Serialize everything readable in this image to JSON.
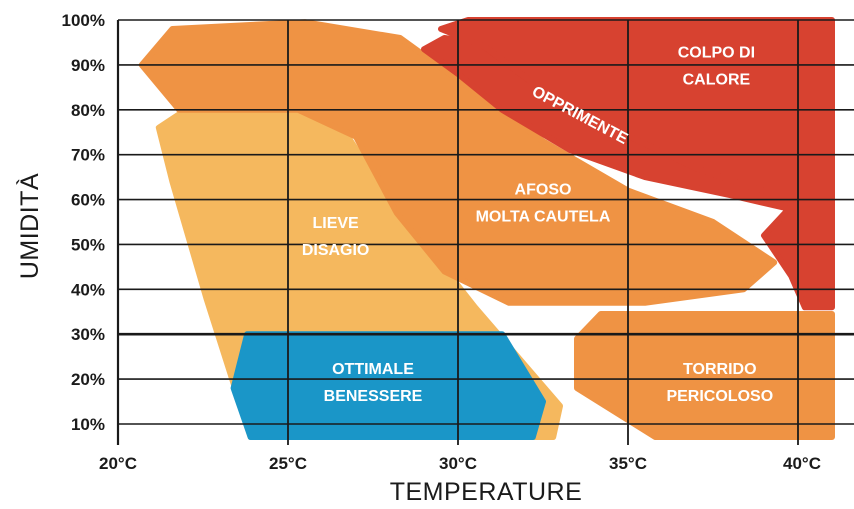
{
  "chart_data": {
    "type": "area",
    "title": "",
    "xlabel": "TEMPERATURE",
    "ylabel": "UMIDITÀ",
    "x_ticks": [
      "20°C",
      "25°C",
      "30°C",
      "35°C",
      "40°C"
    ],
    "y_ticks": [
      "10%",
      "20%",
      "30%",
      "40%",
      "50%",
      "60%",
      "70%",
      "80%",
      "90%",
      "100%"
    ],
    "xlim": [
      20,
      41
    ],
    "ylim": [
      6,
      100
    ],
    "grid": true,
    "zones": [
      {
        "id": "lieve-disagio",
        "lines": [
          "LIEVE",
          "DISAGIO"
        ],
        "color": "#f5b85e",
        "label_at": [
          26.4,
          52.0
        ],
        "polygon": [
          [
            21.2,
            76
          ],
          [
            21.9,
            79.5
          ],
          [
            25.4,
            80
          ],
          [
            26.5,
            77
          ],
          [
            27.8,
            62
          ],
          [
            30.5,
            36
          ],
          [
            33.0,
            14
          ],
          [
            32.8,
            7
          ],
          [
            25.0,
            7
          ],
          [
            23.9,
            7
          ],
          [
            22.6,
            38
          ],
          [
            21.6,
            64
          ]
        ]
      },
      {
        "id": "ottimale-benessere",
        "lines": [
          "OTTIMALE",
          "BENESSERE"
        ],
        "color": "#1a96c8",
        "label_at": [
          27.5,
          19.5
        ],
        "polygon": [
          [
            23.8,
            30
          ],
          [
            31.3,
            30
          ],
          [
            32.5,
            15
          ],
          [
            32.2,
            7
          ],
          [
            23.9,
            7
          ],
          [
            23.4,
            18
          ]
        ]
      },
      {
        "id": "afoso-molta-cautela",
        "lines": [
          "AFOSO",
          "MOLTA CAUTELA"
        ],
        "color": "#ef9344",
        "label_at": [
          32.5,
          59.5
        ],
        "polygon": [
          [
            20.7,
            90
          ],
          [
            21.6,
            98
          ],
          [
            25.5,
            99.5
          ],
          [
            28.3,
            96
          ],
          [
            30.3,
            85
          ],
          [
            32.5,
            73
          ],
          [
            35.0,
            62
          ],
          [
            37.5,
            55
          ],
          [
            39.3,
            46
          ],
          [
            38.4,
            40
          ],
          [
            35.5,
            37
          ],
          [
            31.5,
            37
          ],
          [
            29.6,
            44
          ],
          [
            28.2,
            57
          ],
          [
            27.0,
            74
          ],
          [
            25.3,
            80
          ],
          [
            21.8,
            80
          ]
        ]
      },
      {
        "id": "torrido-pericoloso",
        "lines": [
          "TORRIDO",
          "PERICOLOSO"
        ],
        "color": "#ef9344",
        "label_at": [
          37.7,
          19.5
        ],
        "polygon": [
          [
            33.5,
            29
          ],
          [
            34.2,
            34.5
          ],
          [
            41.0,
            34.5
          ],
          [
            41.0,
            7
          ],
          [
            35.8,
            7
          ],
          [
            33.5,
            18
          ]
        ]
      },
      {
        "id": "opprimente",
        "lines": [
          "OPPRIMENTE"
        ],
        "color": "#d74230",
        "label_at": [
          33.6,
          79.0
        ],
        "rotate": 28,
        "polygon": [
          [
            29.0,
            93.5
          ],
          [
            29.6,
            96
          ],
          [
            30.6,
            95
          ],
          [
            32.0,
            87
          ],
          [
            34.5,
            76
          ],
          [
            37.0,
            67
          ],
          [
            39.5,
            62
          ],
          [
            41.0,
            61
          ],
          [
            41.0,
            57
          ],
          [
            39.7,
            58
          ],
          [
            38.0,
            61
          ],
          [
            35.5,
            65
          ],
          [
            33.3,
            71
          ],
          [
            31.3,
            80
          ],
          [
            30.0,
            88
          ]
        ]
      },
      {
        "id": "colpo-di-calore",
        "lines": [
          "COLPO DI",
          "CALORE"
        ],
        "color": "#d74230",
        "label_at": [
          37.6,
          90.0
        ],
        "polygon": [
          [
            29.5,
            98
          ],
          [
            30.3,
            100
          ],
          [
            41.0,
            100
          ],
          [
            41.0,
            59
          ],
          [
            40.2,
            59.5
          ],
          [
            39.5,
            61
          ],
          [
            38.5,
            63
          ],
          [
            37.0,
            67
          ],
          [
            34.5,
            76
          ],
          [
            32.2,
            86
          ],
          [
            30.8,
            94
          ]
        ]
      },
      {
        "id": "colpo-di-calore-extension",
        "lines": [],
        "color": "#d74230",
        "polygon": [
          [
            39.0,
            52
          ],
          [
            39.8,
            58.5
          ],
          [
            41.0,
            58.5
          ],
          [
            41.0,
            36
          ],
          [
            40.2,
            36
          ],
          [
            39.8,
            43
          ]
        ]
      }
    ]
  }
}
